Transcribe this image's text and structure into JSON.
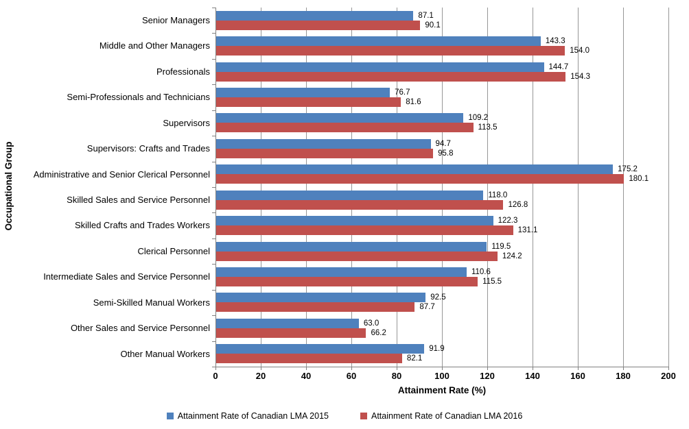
{
  "chart_data": {
    "type": "bar",
    "orientation": "horizontal",
    "title": "",
    "xlabel": "Attainment Rate (%)",
    "ylabel": "Occupational Group",
    "xlim": [
      0,
      200
    ],
    "xticks": [
      0,
      20,
      40,
      60,
      80,
      100,
      120,
      140,
      160,
      180,
      200
    ],
    "grid": true,
    "data_labels": true,
    "legend_position": "bottom",
    "categories": [
      "Senior Managers",
      "Middle and Other Managers",
      "Professionals",
      "Semi-Professionals and Technicians",
      "Supervisors",
      "Supervisors: Crafts and Trades",
      "Administrative and Senior Clerical Personnel",
      "Skilled Sales and Service Personnel",
      "Skilled Crafts and Trades Workers",
      "Clerical Personnel",
      "Intermediate Sales and Service Personnel",
      "Semi-Skilled Manual Workers",
      "Other Sales and Service Personnel",
      "Other Manual Workers"
    ],
    "series": [
      {
        "name": "Attainment Rate of Canadian LMA 2015",
        "color": "#4F81BD",
        "values": [
          87.1,
          143.3,
          144.7,
          76.7,
          109.2,
          94.7,
          175.2,
          118.0,
          122.3,
          119.5,
          110.6,
          92.5,
          63.0,
          91.9
        ]
      },
      {
        "name": "Attainment Rate of Canadian LMA 2016",
        "color": "#C0504D",
        "values": [
          90.1,
          154.0,
          154.3,
          81.6,
          113.5,
          95.8,
          180.1,
          126.8,
          131.1,
          124.2,
          115.5,
          87.7,
          66.2,
          82.1
        ]
      }
    ],
    "colors": {
      "gridline": "#969696",
      "axis": "#808080",
      "text": "#000000"
    }
  }
}
